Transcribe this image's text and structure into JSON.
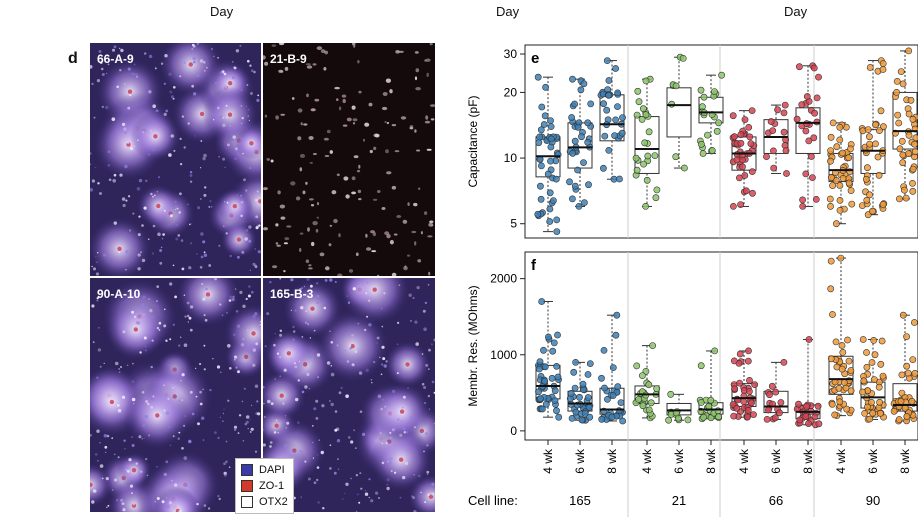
{
  "header": {
    "day_labels": [
      "Day",
      "Day",
      "Day"
    ]
  },
  "panel_d": {
    "letter": "d",
    "tiles": [
      {
        "label": "66-A-9",
        "style": "dense"
      },
      {
        "label": "21-B-9",
        "style": "sparse"
      },
      {
        "label": "90-A-10",
        "style": "dense"
      },
      {
        "label": "165-B-3",
        "style": "dense"
      }
    ],
    "legend": [
      {
        "label": "DAPI",
        "color": "#3a3aa8"
      },
      {
        "label": "ZO-1",
        "color": "#d43a2a"
      },
      {
        "label": "OTX2",
        "color": "#ffffff"
      }
    ]
  },
  "cell_line_row": {
    "prefix": "Cell line:",
    "lines": [
      "165",
      "21",
      "66",
      "90"
    ],
    "weeks": [
      "4 wk",
      "6 wk",
      "8 wk"
    ]
  },
  "colors": {
    "165": "#3d7fb5",
    "21": "#8cc66a",
    "66": "#d64452",
    "90": "#ef9a3a"
  },
  "chart_data": [
    {
      "type": "box",
      "panel": "e",
      "ylabel": "Capacitance (pF)",
      "yscale": "log",
      "yticks": [
        5,
        10,
        20,
        30
      ],
      "ylim": [
        4.3,
        33
      ],
      "groups": [
        {
          "line": "165",
          "week": "4 wk",
          "n": 45,
          "min": 4.6,
          "q1": 8.2,
          "median": 10.2,
          "q3": 12.5,
          "max": 23.5
        },
        {
          "line": "165",
          "week": "6 wk",
          "n": 35,
          "min": 6.0,
          "q1": 9.0,
          "median": 11.2,
          "q3": 14.5,
          "max": 23.0
        },
        {
          "line": "165",
          "week": "8 wk",
          "n": 30,
          "min": 8.0,
          "q1": 12.0,
          "median": 14.3,
          "q3": 19.5,
          "max": 28.0
        },
        {
          "line": "21",
          "week": "4 wk",
          "n": 25,
          "min": 6.0,
          "q1": 8.5,
          "median": 11.0,
          "q3": 15.5,
          "max": 23.0
        },
        {
          "line": "21",
          "week": "6 wk",
          "n": 8,
          "min": 9.0,
          "q1": 12.5,
          "median": 17.5,
          "q3": 21.0,
          "max": 29.0
        },
        {
          "line": "21",
          "week": "8 wk",
          "n": 22,
          "min": 10.5,
          "q1": 14.5,
          "median": 16.2,
          "q3": 19.0,
          "max": 24.0
        },
        {
          "line": "66",
          "week": "4 wk",
          "n": 40,
          "min": 6.0,
          "q1": 8.8,
          "median": 10.5,
          "q3": 12.5,
          "max": 16.5
        },
        {
          "line": "66",
          "week": "6 wk",
          "n": 15,
          "min": 8.5,
          "q1": 10.5,
          "median": 12.5,
          "q3": 15.0,
          "max": 17.5
        },
        {
          "line": "66",
          "week": "8 wk",
          "n": 25,
          "min": 6.0,
          "q1": 10.5,
          "median": 14.5,
          "q3": 17.0,
          "max": 26.5
        },
        {
          "line": "90",
          "week": "4 wk",
          "n": 45,
          "min": 5.0,
          "q1": 7.8,
          "median": 8.8,
          "q3": 10.5,
          "max": 14.5
        },
        {
          "line": "90",
          "week": "6 wk",
          "n": 40,
          "min": 5.5,
          "q1": 8.5,
          "median": 10.8,
          "q3": 13.5,
          "max": 28.0
        },
        {
          "line": "90",
          "week": "8 wk",
          "n": 40,
          "min": 6.5,
          "q1": 11.0,
          "median": 13.3,
          "q3": 20.0,
          "max": 31.0
        }
      ]
    },
    {
      "type": "box",
      "panel": "f",
      "ylabel": "Membr. Res. (MOhms)",
      "yscale": "linear",
      "yticks": [
        0,
        1000,
        2000
      ],
      "ylim": [
        -120,
        2350
      ],
      "groups": [
        {
          "line": "165",
          "week": "4 wk",
          "n": 45,
          "min": 180,
          "q1": 420,
          "median": 590,
          "q3": 860,
          "max": 1700
        },
        {
          "line": "165",
          "week": "6 wk",
          "n": 35,
          "min": 140,
          "q1": 260,
          "median": 360,
          "q3": 520,
          "max": 900
        },
        {
          "line": "165",
          "week": "8 wk",
          "n": 30,
          "min": 130,
          "q1": 220,
          "median": 280,
          "q3": 560,
          "max": 1520
        },
        {
          "line": "21",
          "week": "4 wk",
          "n": 25,
          "min": 170,
          "q1": 360,
          "median": 480,
          "q3": 590,
          "max": 1120
        },
        {
          "line": "21",
          "week": "6 wk",
          "n": 10,
          "min": 140,
          "q1": 210,
          "median": 270,
          "q3": 360,
          "max": 480
        },
        {
          "line": "21",
          "week": "8 wk",
          "n": 22,
          "min": 160,
          "q1": 220,
          "median": 280,
          "q3": 370,
          "max": 1050
        },
        {
          "line": "66",
          "week": "4 wk",
          "n": 40,
          "min": 180,
          "q1": 320,
          "median": 430,
          "q3": 620,
          "max": 1050
        },
        {
          "line": "66",
          "week": "6 wk",
          "n": 15,
          "min": 150,
          "q1": 240,
          "median": 320,
          "q3": 520,
          "max": 900
        },
        {
          "line": "66",
          "week": "8 wk",
          "n": 25,
          "min": 80,
          "q1": 160,
          "median": 250,
          "q3": 340,
          "max": 1200
        },
        {
          "line": "90",
          "week": "4 wk",
          "n": 45,
          "min": 200,
          "q1": 480,
          "median": 680,
          "q3": 980,
          "max": 2270
        },
        {
          "line": "90",
          "week": "6 wk",
          "n": 40,
          "min": 150,
          "q1": 300,
          "median": 440,
          "q3": 640,
          "max": 1200
        },
        {
          "line": "90",
          "week": "8 wk",
          "n": 40,
          "min": 130,
          "q1": 260,
          "median": 340,
          "q3": 620,
          "max": 1520
        }
      ]
    }
  ]
}
